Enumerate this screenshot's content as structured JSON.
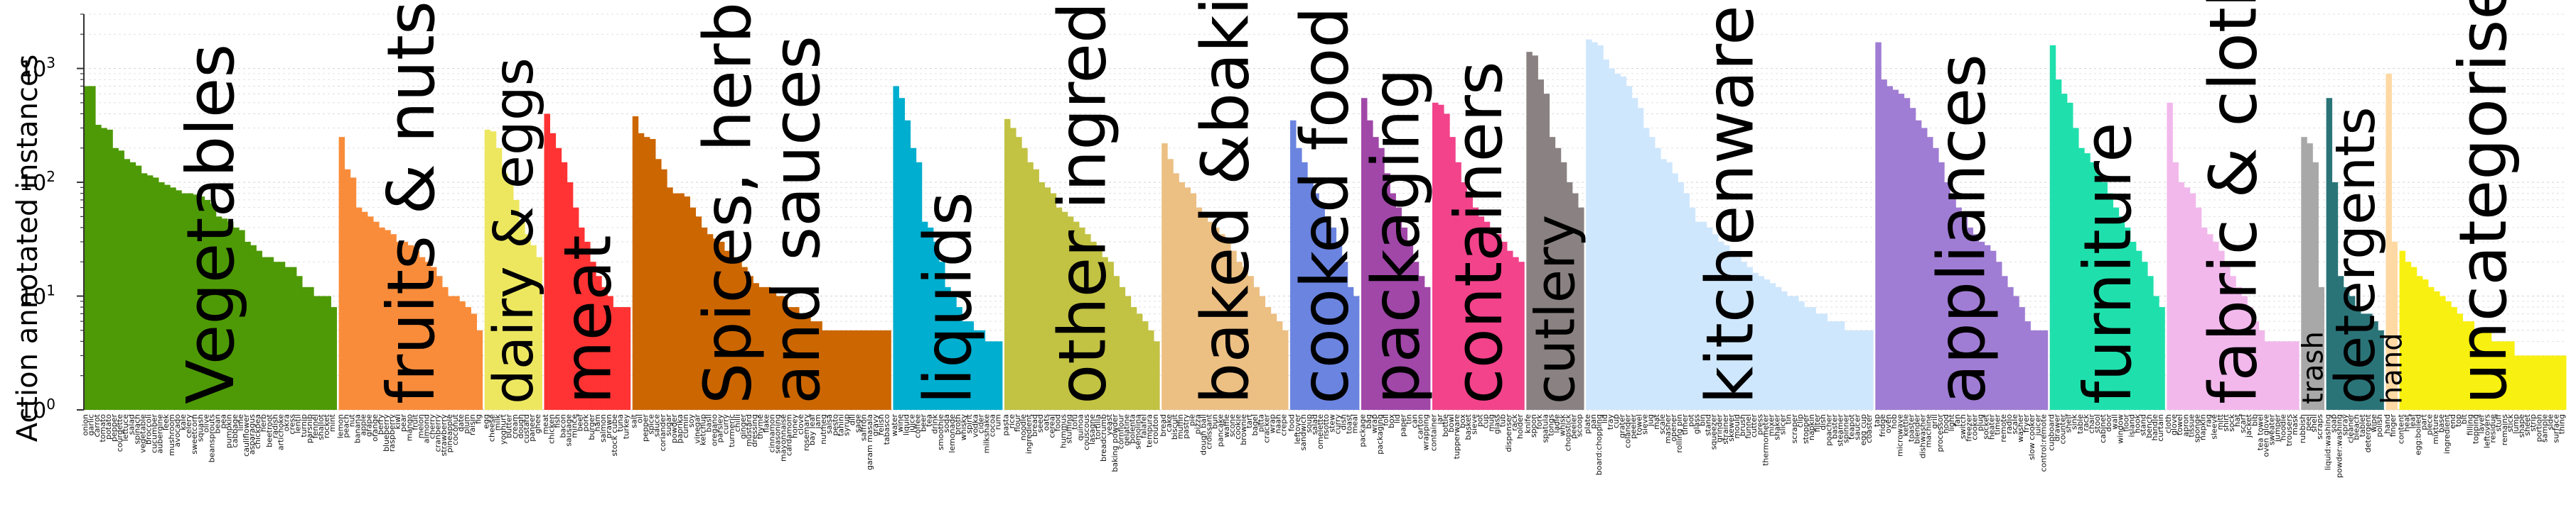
{
  "chart_data": {
    "type": "bar",
    "title": "",
    "ylabel": "Action annotated instances",
    "xlabel": "",
    "yscale": "log",
    "ylim": [
      1,
      3000
    ],
    "grid": true,
    "yticks": [
      {
        "value": 1,
        "base": "10",
        "exp": "0"
      },
      {
        "value": 10,
        "base": "10",
        "exp": "1"
      },
      {
        "value": 100,
        "base": "10",
        "exp": "2"
      },
      {
        "value": 1000,
        "base": "10",
        "exp": "3"
      }
    ],
    "categories": [
      {
        "name": "Vegetables",
        "label_lines": [
          "Vegetables"
        ],
        "color": "#4e9a06",
        "values": [
          700,
          700,
          320,
          300,
          290,
          200,
          190,
          160,
          150,
          140,
          120,
          115,
          110,
          100,
          95,
          90,
          85,
          80,
          80,
          78,
          75,
          70,
          65,
          50,
          48,
          45,
          40,
          38,
          30,
          28,
          25,
          22,
          22,
          20,
          20,
          18,
          18,
          15,
          12,
          12,
          10,
          10,
          10,
          8
        ],
        "items": [
          "onion",
          "garlic",
          "carrot",
          "tomato",
          "potato",
          "pepper",
          "courgette",
          "lettuce",
          "salad",
          "spinach",
          "vegetable",
          "broccoli",
          "cucumber",
          "aubergine",
          "leek",
          "mushroom",
          "avocado",
          "kale",
          "celery",
          "sweetcorn",
          "squash",
          "olive",
          "beansprouts",
          "bean",
          "pea",
          "pumpkin",
          "cabbage",
          "lime",
          "cauliflower",
          "asparagus",
          "chickpea",
          "herb",
          "beetroot",
          "radish",
          "artichoke",
          "okra",
          "cress",
          "lentil",
          "turnip",
          "parsnip",
          "fennel",
          "shallot",
          "rocket",
          "mint"
        ]
      },
      {
        "name": "fruits & nuts",
        "label_lines": [
          "fruits & nuts"
        ],
        "color": "#f98c3a",
        "values": [
          250,
          130,
          110,
          60,
          55,
          50,
          45,
          40,
          38,
          35,
          30,
          30,
          28,
          25,
          22,
          20,
          18,
          15,
          12,
          10,
          10,
          9,
          8,
          7,
          5
        ],
        "items": [
          "lemon",
          "peach",
          "nut",
          "banana",
          "apple",
          "grape",
          "orange",
          "berry",
          "blueberry",
          "raspberry",
          "kiwi",
          "pear",
          "mango",
          "fruit",
          "melon",
          "almond",
          "cherry",
          "cranberry",
          "strawberry",
          "pineapple",
          "coconut",
          "date",
          "plum",
          "raisin",
          "fig"
        ]
      },
      {
        "name": "dairy & eggs",
        "label_lines": [
          "dairy & eggs"
        ],
        "color": "#ede760",
        "values": [
          290,
          280,
          200,
          120,
          100,
          70,
          45,
          35,
          28,
          22
        ],
        "items": [
          "egg",
          "cheese",
          "milk",
          "yoghurt",
          "butter",
          "cream",
          "dough",
          "custard",
          "paneer",
          "ghee"
        ]
      },
      {
        "name": "meat",
        "label_lines": [
          "meat"
        ],
        "color": "#ff3333",
        "values": [
          400,
          270,
          200,
          150,
          100,
          60,
          40,
          30,
          20,
          15,
          12,
          10,
          8,
          8,
          8
        ],
        "items": [
          "meat",
          "chicken",
          "fish",
          "bacon",
          "sausage",
          "mince",
          "beef",
          "pork",
          "burger",
          "ham",
          "salmon",
          "prawn",
          "stock cube",
          "tuna",
          "turkey"
        ]
      },
      {
        "name": "Spices, herbs and sauces",
        "label_lines": [
          "Spices, herbs",
          "and sauces"
        ],
        "color": "#cc6600",
        "values": [
          380,
          270,
          250,
          240,
          160,
          130,
          90,
          80,
          80,
          75,
          60,
          50,
          40,
          35,
          32,
          30,
          25,
          22,
          20,
          18,
          15,
          13,
          12,
          12,
          11,
          10,
          10,
          8,
          8,
          7,
          7,
          6,
          6,
          5,
          5,
          5,
          5,
          5,
          5,
          5,
          5,
          5,
          5,
          5,
          5
        ],
        "items": [
          "salt",
          "oil",
          "pepper",
          "spice",
          "sauce",
          "coriander",
          "sugar",
          "powder",
          "paprika",
          "cumin",
          "soy",
          "vinegar",
          "ketchup",
          "basil",
          "oregano",
          "parsley",
          "curry",
          "turmeric",
          "chilli",
          "ginger",
          "mustard",
          "dressing",
          "thyme",
          "flake",
          "cinnamon",
          "seasoning",
          "mayonnaise",
          "cardamom",
          "honey",
          "clove",
          "rosemary",
          "bay leaf",
          "jam",
          "nutmeg",
          "salsa",
          "pesto",
          "tahini",
          "syrup",
          "dill",
          "sage",
          "saffron",
          "garam masala",
          "gravy",
          "relish",
          "tabasco"
        ]
      },
      {
        "name": "liquids",
        "label_lines": [
          "liquids"
        ],
        "color": "#00aecf",
        "values": [
          700,
          550,
          350,
          200,
          150,
          45,
          40,
          30,
          20,
          12,
          10,
          8,
          6,
          6,
          5,
          5,
          4,
          4,
          4
        ],
        "items": [
          "water",
          "wine",
          "liquid",
          "juice",
          "coffee",
          "beer",
          "tea",
          "drink",
          "smoothie",
          "soda",
          "lemonade",
          "broth",
          "whisky",
          "spirit",
          "vodka",
          "cider",
          "milkshake",
          "cocoa",
          "rum"
        ]
      },
      {
        "name": "other ingredients",
        "label_lines": [
          "other ingredients"
        ],
        "color": "#c2c243",
        "values": [
          360,
          300,
          250,
          200,
          150,
          130,
          100,
          90,
          80,
          60,
          55,
          50,
          45,
          40,
          35,
          30,
          25,
          22,
          20,
          15,
          12,
          10,
          8,
          7,
          6,
          5,
          4
        ],
        "items": [
          "pasta",
          "rice",
          "flour",
          "noodle",
          "ingredient",
          "bread",
          "seed",
          "oats",
          "cereal",
          "food",
          "hummus",
          "stuffing",
          "tofu",
          "quinoa",
          "couscous",
          "lasagne",
          "tortilla",
          "breadcrumb",
          "yeast",
          "baking powder",
          "cornflour",
          "gelatine",
          "polenta",
          "semolina",
          "falafel",
          "tempura",
          "crouton"
        ]
      },
      {
        "name": "baked &baking",
        "label_lines": [
          "baked &baking"
        ],
        "color": "#ecbf83",
        "values": [
          220,
          160,
          120,
          100,
          90,
          80,
          60,
          55,
          45,
          40,
          35,
          30,
          25,
          20,
          18,
          15,
          12,
          10,
          8,
          7,
          6,
          5
        ],
        "items": [
          "bread",
          "cake",
          "biscuit",
          "muffin",
          "pastry",
          "pie",
          "pizza",
          "dough ball",
          "croissant",
          "bun",
          "pancake",
          "waffle",
          "scone",
          "cookie",
          "brownie",
          "tart",
          "bagel",
          "pitta",
          "cracker",
          "wrap",
          "naan",
          "crepe"
        ]
      },
      {
        "name": "cooked food",
        "label_lines": [
          "cooked food"
        ],
        "color": "#6b84e0",
        "values": [
          350,
          200,
          150,
          100,
          80,
          60,
          50,
          40,
          30,
          20,
          12,
          10
        ],
        "items": [
          "food",
          "leftover",
          "sandwich",
          "soup",
          "salad",
          "omelette",
          "risotto",
          "stew",
          "curry",
          "dish",
          "toast",
          "meal"
        ]
      },
      {
        "name": "packaging",
        "label_lines": [
          "packaging"
        ],
        "color": "#a047a8",
        "values": [
          550,
          350,
          250,
          200,
          120,
          80,
          60,
          40,
          30,
          20,
          15,
          12
        ],
        "items": [
          "package",
          "bag",
          "wrap",
          "packaging",
          "foil",
          "box",
          "lid",
          "paper",
          "tin",
          "can",
          "carton",
          "wrapping"
        ]
      },
      {
        "name": "containers",
        "label_lines": [
          "containers"
        ],
        "color": "#f2438b",
        "values": [
          500,
          480,
          400,
          250,
          150,
          100,
          80,
          60,
          50,
          45,
          40,
          35,
          30,
          25,
          22,
          20
        ],
        "items": [
          "container",
          "jar",
          "bottle",
          "bowl",
          "tupperware",
          "box",
          "basket",
          "sieve",
          "pot",
          "cup",
          "mug",
          "glass",
          "tub",
          "dispenser",
          "rack",
          "holder"
        ]
      },
      {
        "name": "cutlery",
        "label_lines": [
          "cutlery"
        ],
        "color": "#8a8282",
        "values": [
          1400,
          1300,
          800,
          600,
          250,
          200,
          150,
          100,
          80,
          60
        ],
        "items": [
          "knife",
          "spoon",
          "fork",
          "spatula",
          "tongs",
          "ladle",
          "whisk",
          "chopstick",
          "peeler",
          "scoop"
        ]
      },
      {
        "name": "kitchenware",
        "label_lines": [
          "kitchenware"
        ],
        "color": "#cfe7fd",
        "values": [
          1800,
          1700,
          1600,
          1200,
          1000,
          900,
          850,
          700,
          550,
          450,
          300,
          250,
          200,
          160,
          150,
          120,
          100,
          80,
          60,
          45,
          45,
          40,
          35,
          30,
          28,
          25,
          22,
          20,
          18,
          16,
          15,
          14,
          13,
          12,
          11,
          10,
          10,
          9,
          8,
          8,
          7,
          7,
          6,
          6,
          6,
          5,
          5,
          5,
          5,
          5
        ],
        "items": [
          "plate",
          "pan",
          "board:chopping",
          "lid",
          "tray",
          "cup",
          "grater",
          "colander",
          "peeler",
          "towel",
          "sieve",
          "jug",
          "mat",
          "scale",
          "masher",
          "opener",
          "rolling pin",
          "timer",
          "pot",
          "glass",
          "bin",
          "stand",
          "squeezer",
          "grinder",
          "strainer",
          "skewer",
          "mould",
          "brush",
          "funnel",
          "cutter",
          "press",
          "thermometer",
          "mixer",
          "shaker",
          "slicer",
          "tin",
          "scraper",
          "clip",
          "stopper",
          "napkin",
          "filter",
          "dish",
          "poacher",
          "baster",
          "steamer",
          "spinner",
          "teapot",
          "saucer",
          "egg cup",
          "coaster"
        ]
      },
      {
        "name": "appliances",
        "label_lines": [
          "appliances"
        ],
        "color": "#a07dd4",
        "values": [
          1700,
          800,
          700,
          650,
          600,
          550,
          450,
          350,
          300,
          250,
          200,
          150,
          100,
          80,
          60,
          50,
          40,
          35,
          30,
          28,
          25,
          20,
          15,
          12,
          10,
          8,
          6,
          5,
          5,
          5
        ],
        "items": [
          "tap",
          "fridge",
          "oven",
          "hob",
          "microwave",
          "kettle",
          "toaster",
          "blender",
          "dishwasher",
          "machine",
          "grill",
          "processor",
          "hood",
          "light",
          "fan",
          "switch",
          "freezer",
          "cooker",
          "plug",
          "socket",
          "heater",
          "timer",
          "remote",
          "radio",
          "scale",
          "washer",
          "fryer",
          "slow cooker",
          "juicer",
          "control:remote"
        ]
      },
      {
        "name": "furniture",
        "label_lines": [
          "furniture"
        ],
        "color": "#1fe0ad",
        "values": [
          1600,
          800,
          600,
          500,
          300,
          200,
          180,
          150,
          120,
          100,
          80,
          60,
          50,
          40,
          30,
          25,
          20,
          15,
          10,
          8
        ],
        "items": [
          "cupboard",
          "drawer",
          "counter",
          "shelf",
          "sink",
          "table",
          "rack",
          "chair",
          "stool",
          "cabinet",
          "door",
          "wall",
          "window",
          "floor",
          "island",
          "hook",
          "stand",
          "bench",
          "handle",
          "curtain"
        ]
      },
      {
        "name": "fabric & clothes",
        "label_lines": [
          "fabric & clothes"
        ],
        "color": "#f2b8ec",
        "values": [
          500,
          150,
          100,
          90,
          80,
          60,
          40,
          35,
          30,
          25,
          20,
          15,
          12,
          10,
          8,
          6,
          5,
          4,
          4,
          4,
          4,
          4,
          4
        ],
        "items": [
          "cloth",
          "glove",
          "towel",
          "apron",
          "tissue",
          "sponge",
          "napkin",
          "rag",
          "sleeve",
          "mitt",
          "shirt",
          "sock",
          "hat",
          "scarf",
          "jacket",
          "bib",
          "tea towel",
          "oven glove",
          "sweater",
          "jumper",
          "hoodie",
          "trousers",
          "mask"
        ]
      },
      {
        "name": "trash",
        "label_lines": [
          "trash"
        ],
        "color": "#a8a8a8",
        "values": [
          250,
          220,
          150,
          12
        ],
        "items": [
          "rubbish",
          "peel",
          "shell",
          "scraps"
        ]
      },
      {
        "name": "detergents",
        "label_lines": [
          "detergents"
        ],
        "color": "#2a7478",
        "values": [
          550,
          100,
          15,
          12,
          10,
          8,
          7,
          7,
          6,
          5
        ],
        "items": [
          "liquid:washing",
          "soap",
          "powder:washing",
          "spray",
          "cleaner",
          "bleach",
          "tablet",
          "detergent",
          "wipe",
          "polish"
        ]
      },
      {
        "name": "hand",
        "label_lines": [
          "hand"
        ],
        "color": "#ffd9a3",
        "values": [
          900,
          30
        ],
        "items": [
          "hand",
          "finger"
        ]
      },
      {
        "name": "uncategorised",
        "label_lines": [
          "uncategorised"
        ],
        "color": "#f8f010",
        "values": [
          25,
          20,
          18,
          15,
          14,
          12,
          11,
          10,
          9,
          8,
          7,
          6,
          6,
          5,
          5,
          5,
          4,
          4,
          4,
          4,
          3,
          3,
          3,
          3,
          3,
          3,
          3,
          3,
          3
        ],
        "items": [
          "content",
          "heat",
          "leaf",
          "egg:boiled",
          "part",
          "piece",
          "mixture",
          "base",
          "ingredient",
          "end",
          "top",
          "bit",
          "filling",
          "topping",
          "layer",
          "leftovers",
          "residue",
          "stuff",
          "remains",
          "stick",
          "lump",
          "shape",
          "sheet",
          "strip",
          "portion",
          "sample",
          "side",
          "surface",
          "thing"
        ]
      }
    ]
  }
}
